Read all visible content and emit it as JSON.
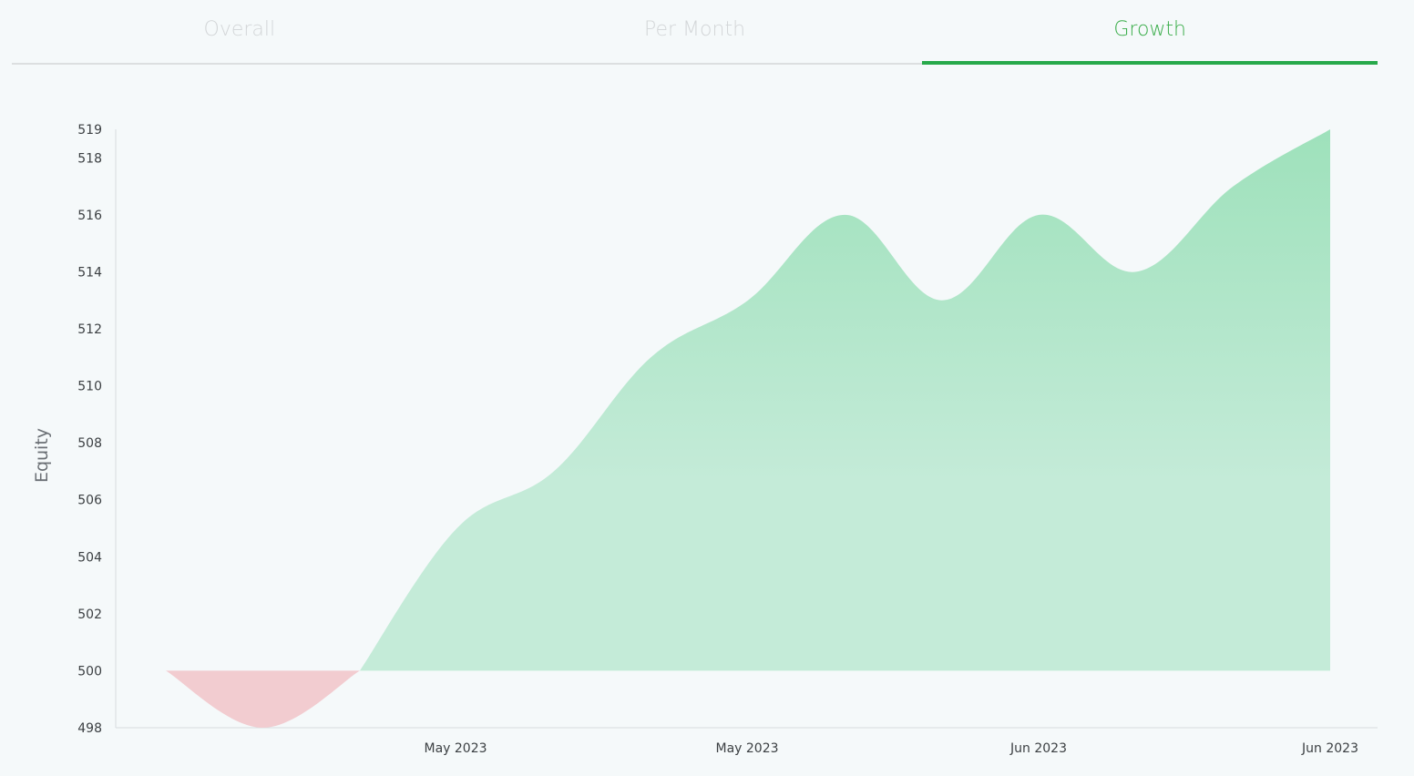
{
  "tabs": [
    {
      "label": "Overall"
    },
    {
      "label": "Per Month"
    },
    {
      "label": "Growth"
    }
  ],
  "active_tab": "Growth",
  "colors": {
    "positive_fill": "#a0e2bd",
    "negative_fill": "#f2ccd0",
    "active_tab": "#27a94a"
  },
  "chart_data": {
    "type": "area",
    "ylabel": "Equity",
    "baseline": 500,
    "ylim": [
      498,
      519
    ],
    "yticks": [
      498,
      500,
      502,
      504,
      506,
      508,
      510,
      512,
      514,
      516,
      518,
      519
    ],
    "xticks": [
      "May 2023",
      "May 2023",
      "Jun 2023",
      "Jun 2023"
    ],
    "series": [
      {
        "values": [
          500,
          498,
          500,
          505,
          507,
          511,
          513,
          516,
          513,
          516,
          514,
          517,
          519
        ]
      }
    ],
    "grid": false
  }
}
